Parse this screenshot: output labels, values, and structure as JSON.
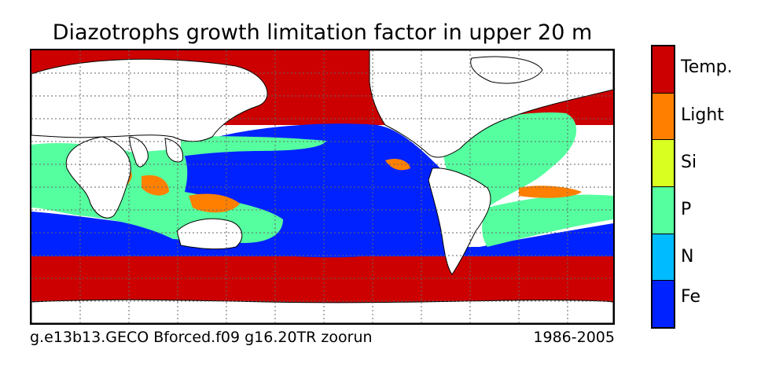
{
  "title": "Diazotrophs growth limitation factor in upper 20 m",
  "caption_left": "g.e13b13.GECO Bforced.f09 g16.20TR zoorun",
  "caption_right": "1986-2005",
  "legend": [
    {
      "label": "Temp.",
      "color": "#cc0000"
    },
    {
      "label": "Light",
      "color": "#ff8000"
    },
    {
      "label": "Si",
      "color": "#d8ff20"
    },
    {
      "label": "P",
      "color": "#55ff9f"
    },
    {
      "label": "N",
      "color": "#00bbff"
    },
    {
      "label": "Fe",
      "color": "#0022ff"
    }
  ]
}
